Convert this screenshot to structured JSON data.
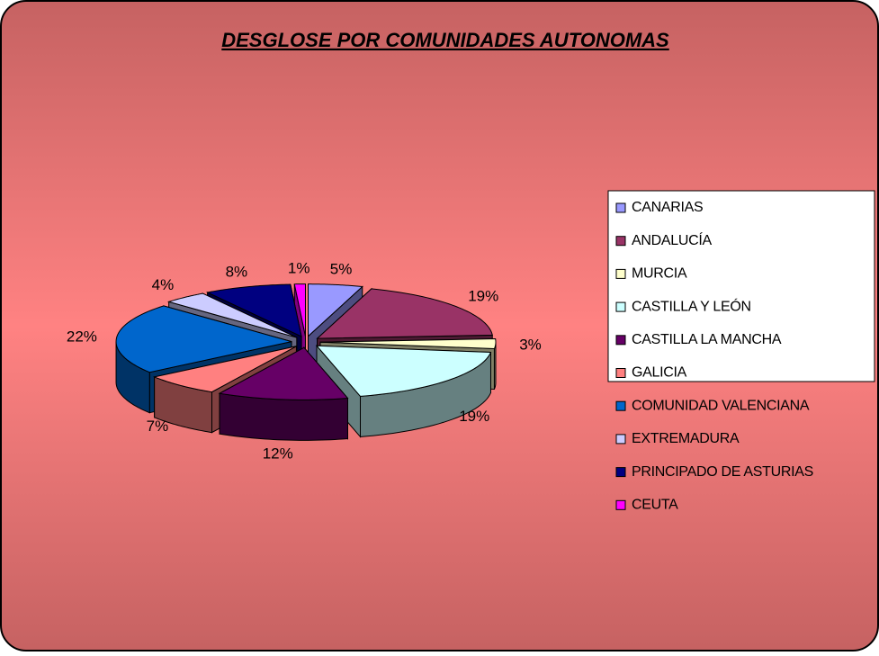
{
  "chart_data": {
    "type": "pie3d",
    "title": "DESGLOSE POR COMUNIDADES AUTONOMAS",
    "categories": [
      "CANARIAS",
      "ANDALUCÍA",
      "MURCIA",
      "CASTILLA Y LEÓN",
      "CASTILLA LA MANCHA",
      "GALICIA",
      "COMUNIDAD VALENCIANA",
      "EXTREMADURA",
      "PRINCIPADO DE ASTURIAS",
      "CEUTA"
    ],
    "values": [
      5,
      19,
      3,
      19,
      12,
      7,
      22,
      4,
      8,
      1
    ],
    "value_labels": [
      "5%",
      "19%",
      "3%",
      "19%",
      "12%",
      "7%",
      "22%",
      "4%",
      "8%",
      "1%"
    ],
    "colors": [
      "#9999ff",
      "#993366",
      "#ffffcc",
      "#ccffff",
      "#660066",
      "#ff8080",
      "#0066cc",
      "#ccccff",
      "#000080",
      "#ff00ff"
    ],
    "legend": "right"
  }
}
